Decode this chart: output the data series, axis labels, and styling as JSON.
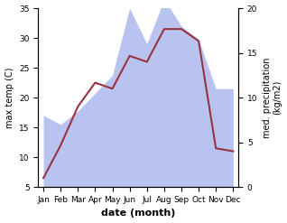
{
  "months": [
    "Jan",
    "Feb",
    "Mar",
    "Apr",
    "May",
    "Jun",
    "Jul",
    "Aug",
    "Sep",
    "Oct",
    "Nov",
    "Dec"
  ],
  "temperature": [
    6.5,
    12.0,
    18.5,
    22.5,
    21.5,
    27.0,
    26.0,
    31.5,
    31.5,
    29.5,
    11.5,
    11.0
  ],
  "precipitation": [
    8.0,
    7.0,
    8.5,
    10.5,
    12.5,
    20.0,
    16.0,
    21.0,
    18.0,
    16.5,
    11.0,
    11.0
  ],
  "temp_color": "#993344",
  "precip_color": "#b8c4ef",
  "temp_ylim": [
    5,
    35
  ],
  "precip_ylim": [
    0,
    20
  ],
  "temp_yticks": [
    5,
    10,
    15,
    20,
    25,
    30,
    35
  ],
  "precip_yticks": [
    0,
    5,
    10,
    15,
    20
  ],
  "xlabel": "date (month)",
  "ylabel_left": "max temp (C)",
  "ylabel_right": "med. precipitation\n(kg/m2)",
  "bg_color": "#ffffff",
  "fig_width": 3.18,
  "fig_height": 2.47,
  "linewidth": 1.5,
  "xlabel_fontsize": 8,
  "ylabel_fontsize": 7,
  "tick_fontsize": 6.5
}
